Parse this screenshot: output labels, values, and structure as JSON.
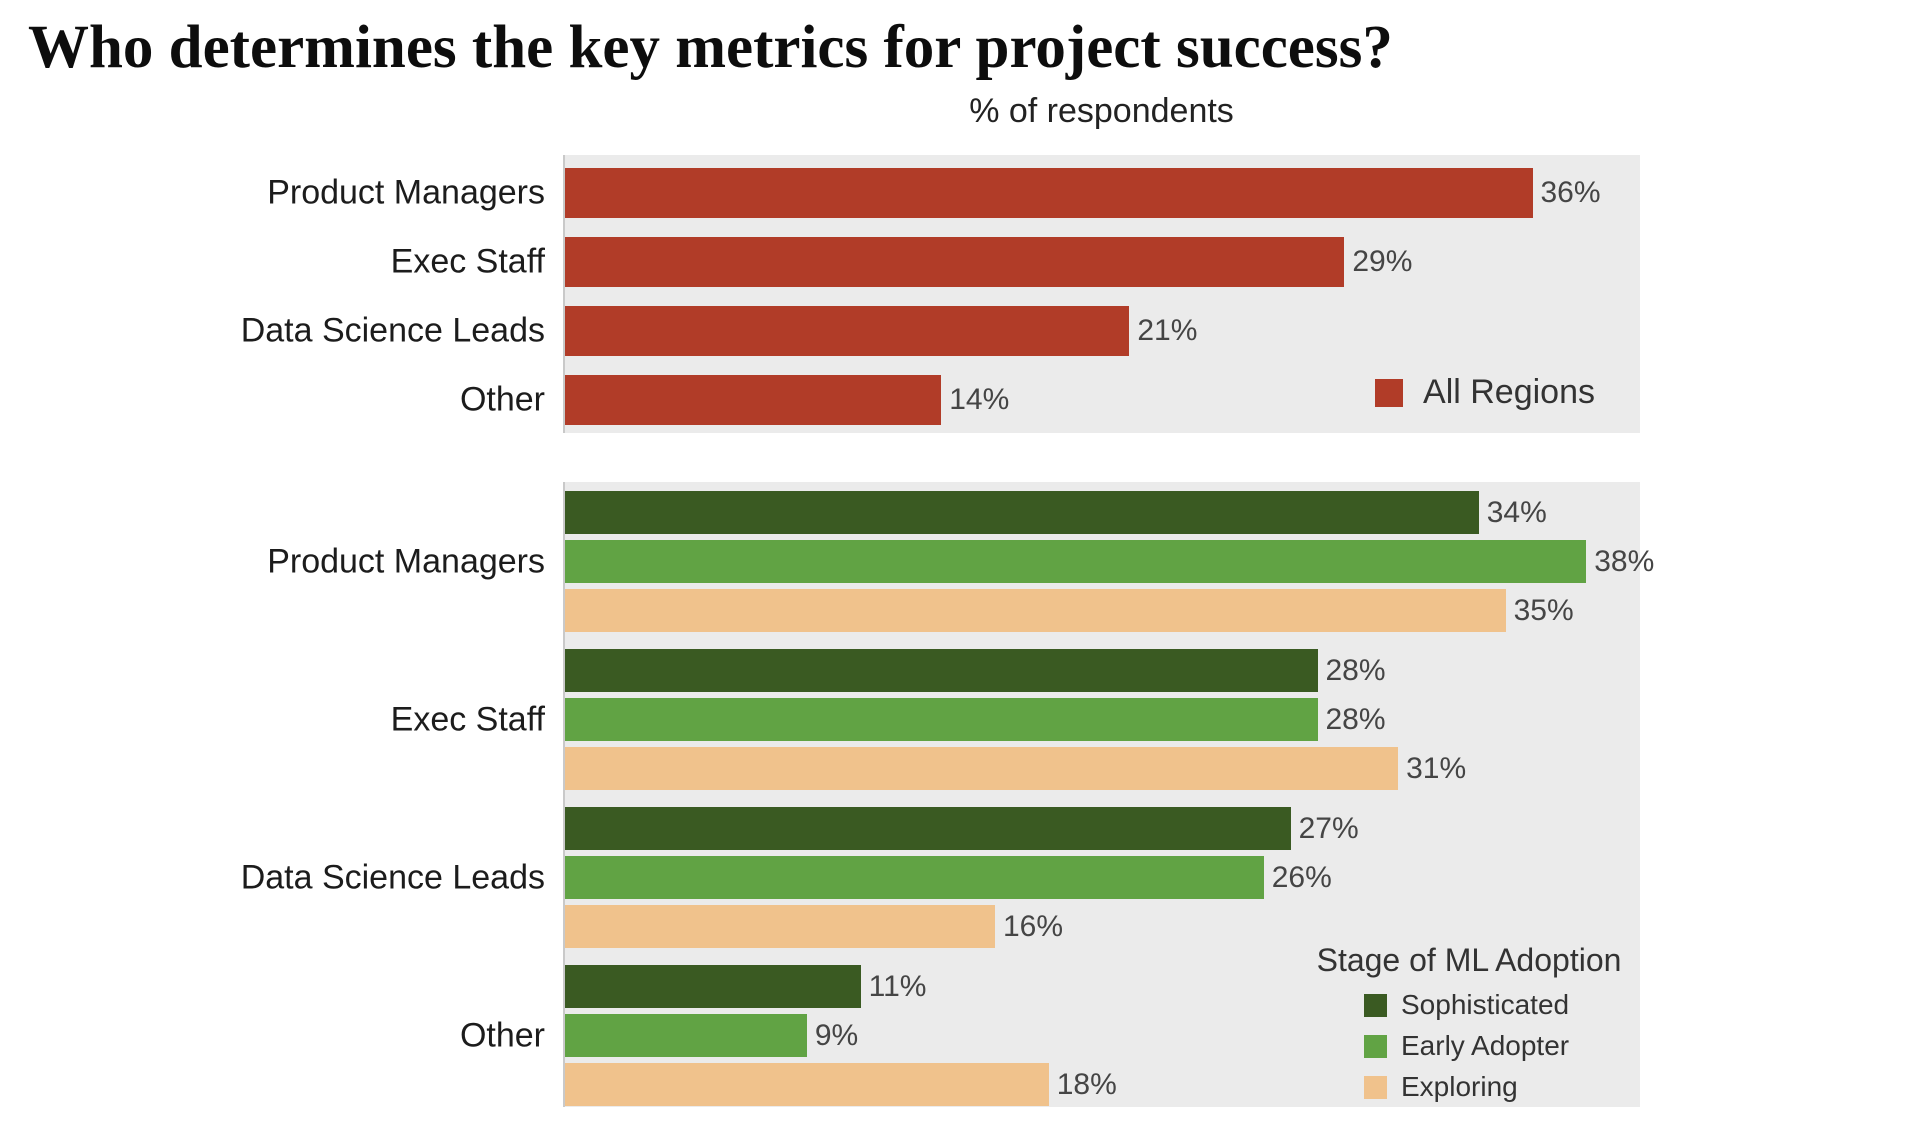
{
  "title": "Who determines the key metrics for project success?",
  "subtitle": "% of respondents",
  "colors": {
    "all_regions": "#b13c28",
    "sophisticated": "#3a5a22",
    "early_adopter": "#61a344",
    "exploring": "#f0c28c",
    "plot_background": "#ebebeb",
    "axis_line": "#c9c9c9",
    "value_label_text": "#454545",
    "category_label_text": "#1c1c1c"
  },
  "chart_data": [
    {
      "type": "bar",
      "orientation": "horizontal",
      "title": "% of respondents",
      "categories": [
        "Product Managers",
        "Exec Staff",
        "Data Science Leads",
        "Other"
      ],
      "series": [
        {
          "name": "All Regions",
          "color_key": "all_regions",
          "values": [
            36,
            29,
            21,
            14
          ]
        }
      ],
      "value_suffix": "%",
      "xlim": [
        0,
        40
      ],
      "grid": false,
      "legend_position": "bottom-right"
    },
    {
      "type": "bar",
      "orientation": "horizontal",
      "legend_title": "Stage of ML Adoption",
      "categories": [
        "Product Managers",
        "Exec Staff",
        "Data Science Leads",
        "Other"
      ],
      "series": [
        {
          "name": "Sophisticated",
          "color_key": "sophisticated",
          "values": [
            34,
            28,
            27,
            11
          ]
        },
        {
          "name": "Early Adopter",
          "color_key": "early_adopter",
          "values": [
            38,
            28,
            26,
            9
          ]
        },
        {
          "name": "Exploring",
          "color_key": "exploring",
          "values": [
            35,
            31,
            16,
            18
          ]
        }
      ],
      "value_suffix": "%",
      "xlim": [
        0,
        40
      ],
      "grid": false,
      "legend_position": "bottom-right"
    }
  ]
}
